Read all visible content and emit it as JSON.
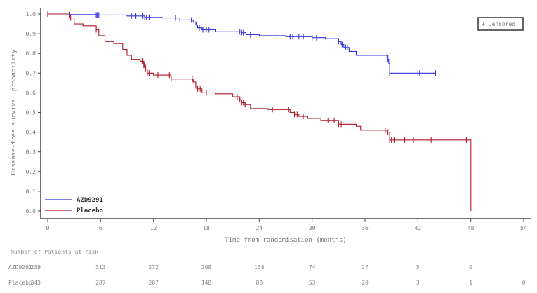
{
  "chart_data": {
    "type": "line",
    "subtype": "kaplan-meier",
    "xlabel": "Time from randomisation (months)",
    "ylabel": "Disease-free survival probability",
    "xlim": [
      0,
      54
    ],
    "ylim": [
      0,
      1
    ],
    "xticks": [
      0,
      6,
      12,
      18,
      24,
      30,
      36,
      42,
      48,
      54
    ],
    "yticks": [
      "0.0",
      "0.1",
      "0.2",
      "0.3",
      "0.4",
      "0.5",
      "0.6",
      "0.7",
      "0.8",
      "0.9",
      "1.0"
    ],
    "grid": false,
    "censor_legend": "+ Censored",
    "legend_placement": "bottom-left",
    "series": [
      {
        "name": "AZD9291",
        "color": "#3333dd",
        "steps": [
          [
            0,
            1.0
          ],
          [
            2.5,
            0.997
          ],
          [
            5.5,
            0.995
          ],
          [
            9,
            0.99
          ],
          [
            11,
            0.983
          ],
          [
            13,
            0.98
          ],
          [
            15,
            0.97
          ],
          [
            16.5,
            0.96
          ],
          [
            16.8,
            0.945
          ],
          [
            17,
            0.93
          ],
          [
            17.5,
            0.92
          ],
          [
            19,
            0.91
          ],
          [
            22,
            0.905
          ],
          [
            22.5,
            0.895
          ],
          [
            24,
            0.89
          ],
          [
            27,
            0.885
          ],
          [
            30,
            0.88
          ],
          [
            31.5,
            0.875
          ],
          [
            33,
            0.86
          ],
          [
            33.3,
            0.845
          ],
          [
            33.6,
            0.83
          ],
          [
            34.2,
            0.81
          ],
          [
            35,
            0.79
          ],
          [
            38.6,
            0.77
          ],
          [
            38.7,
            0.75
          ],
          [
            38.8,
            0.7
          ],
          [
            44,
            0.7
          ]
        ],
        "censored": [
          2.5,
          5.5,
          5.6,
          5.8,
          9.5,
          10,
          10.8,
          11,
          11.2,
          11.5,
          14.5,
          15,
          16.3,
          16.6,
          16.9,
          17.2,
          17.6,
          18,
          18.3,
          21.8,
          22,
          22.2,
          22.5,
          23,
          26,
          27.5,
          27.8,
          28.5,
          29,
          30,
          30.5,
          33,
          33.4,
          33.8,
          34,
          38.5,
          38.6,
          38.8,
          42,
          42.2,
          44
        ]
      },
      {
        "name": "Placebo",
        "color": "#b01828",
        "steps": [
          [
            0,
            1.0
          ],
          [
            2.5,
            0.98
          ],
          [
            3,
            0.95
          ],
          [
            4,
            0.94
          ],
          [
            5.5,
            0.92
          ],
          [
            5.8,
            0.89
          ],
          [
            6.5,
            0.86
          ],
          [
            7.5,
            0.85
          ],
          [
            8.5,
            0.82
          ],
          [
            9,
            0.79
          ],
          [
            9.5,
            0.77
          ],
          [
            10.5,
            0.76
          ],
          [
            10.9,
            0.74
          ],
          [
            11.1,
            0.72
          ],
          [
            11.3,
            0.7
          ],
          [
            12,
            0.69
          ],
          [
            14,
            0.67
          ],
          [
            16.5,
            0.655
          ],
          [
            16.8,
            0.635
          ],
          [
            17,
            0.62
          ],
          [
            17.5,
            0.6
          ],
          [
            19,
            0.595
          ],
          [
            21,
            0.58
          ],
          [
            21.8,
            0.565
          ],
          [
            22,
            0.55
          ],
          [
            22.3,
            0.54
          ],
          [
            23,
            0.52
          ],
          [
            25,
            0.515
          ],
          [
            27.5,
            0.5
          ],
          [
            28,
            0.49
          ],
          [
            28.5,
            0.48
          ],
          [
            29.5,
            0.47
          ],
          [
            31,
            0.46
          ],
          [
            33,
            0.44
          ],
          [
            35,
            0.43
          ],
          [
            35.5,
            0.41
          ],
          [
            38.5,
            0.4
          ],
          [
            38.8,
            0.36
          ],
          [
            48,
            0.36
          ],
          [
            48.01,
            0.0
          ]
        ],
        "censored": [
          0,
          2.6,
          5.5,
          5.7,
          10.8,
          10.9,
          11,
          11.1,
          11.3,
          11.5,
          12.5,
          13.8,
          14,
          16.4,
          16.6,
          16.8,
          17,
          17.3,
          18,
          21.5,
          21.8,
          22,
          22.2,
          22.4,
          25.5,
          27.3,
          27.6,
          28,
          28.3,
          29,
          31.8,
          32.5,
          33,
          33.3,
          38.3,
          38.6,
          38.8,
          39,
          39.3,
          40.5,
          41.5,
          43.5,
          47.5
        ]
      }
    ],
    "risk_table": {
      "title": "Number of Patients at risk",
      "rows": [
        {
          "label": "AZD9291",
          "values": [
            "339",
            "313",
            "272",
            "208",
            "138",
            "74",
            "27",
            "5",
            "0"
          ]
        },
        {
          "label": "Placebo",
          "values": [
            "343",
            "287",
            "207",
            "148",
            "88",
            "53",
            "20",
            "3",
            "1",
            "0"
          ]
        }
      ]
    }
  }
}
